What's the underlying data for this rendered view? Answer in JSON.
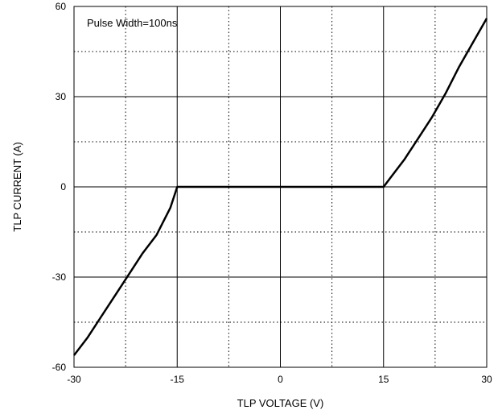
{
  "chart_data": {
    "type": "line",
    "title": "",
    "xlabel": "TLP VOLTAGE   (V)",
    "ylabel": "TLP CURRENT  (A)",
    "xlim": [
      -30,
      30
    ],
    "ylim": [
      -60,
      60
    ],
    "xticks": [
      -30,
      -15,
      0,
      15,
      30
    ],
    "yticks": [
      -60,
      -30,
      0,
      30,
      60
    ],
    "xtick_labels": [
      "-30",
      "-15",
      "0",
      "15",
      "30"
    ],
    "ytick_labels": [
      "-60",
      "-30",
      "0",
      "30",
      "60"
    ],
    "grid": {
      "major": "solid",
      "minor": "dotted",
      "minor_x": [
        -22.5,
        -7.5,
        7.5,
        22.5
      ],
      "minor_y": [
        -45,
        -15,
        15,
        45
      ]
    },
    "annotation": "Pulse Width=100ns",
    "line_color": "#000000",
    "series": [
      {
        "x": [
          -30,
          -28,
          -26,
          -24,
          -22,
          -20,
          -18,
          -16,
          -15,
          -10,
          -5,
          0,
          5,
          10,
          15,
          16,
          18,
          20,
          22,
          24,
          26,
          28,
          30
        ],
        "y": [
          -56,
          -50,
          -43,
          -36,
          -29,
          -22,
          -16,
          -7,
          0,
          0,
          0,
          0,
          0,
          0,
          0,
          3,
          9,
          16,
          23,
          31,
          40,
          48,
          56
        ]
      }
    ]
  }
}
